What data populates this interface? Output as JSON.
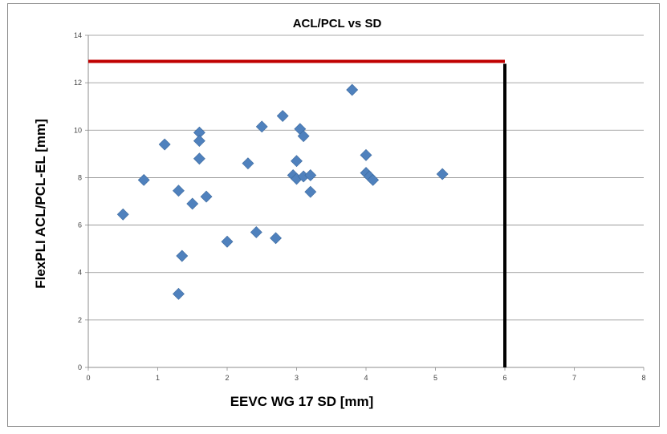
{
  "chart_data": {
    "type": "scatter",
    "title": "ACL/PCL vs SD",
    "xlabel": "EEVC WG 17 SD [mm]",
    "ylabel": "FlexPLI ACL/PCL-EL [mm]",
    "xlim": [
      0,
      8
    ],
    "ylim": [
      0,
      14
    ],
    "x_ticks": [
      "0",
      "1",
      "2",
      "3",
      "4",
      "5",
      "6",
      "7",
      "8"
    ],
    "y_ticks": [
      "0",
      "2",
      "4",
      "6",
      "8",
      "10",
      "12",
      "14"
    ],
    "grid": "horizontal",
    "legend": "none",
    "marker_color": "#4f81bd",
    "points": [
      {
        "x": 0.5,
        "y": 6.45
      },
      {
        "x": 0.8,
        "y": 7.9
      },
      {
        "x": 1.1,
        "y": 9.4
      },
      {
        "x": 1.3,
        "y": 7.45
      },
      {
        "x": 1.3,
        "y": 3.1
      },
      {
        "x": 1.35,
        "y": 4.7
      },
      {
        "x": 1.5,
        "y": 6.9
      },
      {
        "x": 1.6,
        "y": 9.9
      },
      {
        "x": 1.6,
        "y": 9.55
      },
      {
        "x": 1.6,
        "y": 8.8
      },
      {
        "x": 1.7,
        "y": 7.2
      },
      {
        "x": 2.0,
        "y": 5.3
      },
      {
        "x": 2.3,
        "y": 8.6
      },
      {
        "x": 2.42,
        "y": 5.7
      },
      {
        "x": 2.5,
        "y": 10.15
      },
      {
        "x": 2.7,
        "y": 5.45
      },
      {
        "x": 2.8,
        "y": 10.6
      },
      {
        "x": 2.95,
        "y": 8.1
      },
      {
        "x": 3.0,
        "y": 8.7
      },
      {
        "x": 3.0,
        "y": 7.95
      },
      {
        "x": 3.05,
        "y": 10.05
      },
      {
        "x": 3.1,
        "y": 9.75
      },
      {
        "x": 3.1,
        "y": 8.05
      },
      {
        "x": 3.2,
        "y": 8.1
      },
      {
        "x": 3.2,
        "y": 7.4
      },
      {
        "x": 3.8,
        "y": 11.7
      },
      {
        "x": 4.0,
        "y": 8.95
      },
      {
        "x": 4.0,
        "y": 8.2
      },
      {
        "x": 4.05,
        "y": 8.05
      },
      {
        "x": 4.1,
        "y": 7.9
      },
      {
        "x": 5.1,
        "y": 8.15
      }
    ],
    "threshold_lines": [
      {
        "orientation": "horizontal",
        "y": 12.9,
        "x_from": 0,
        "x_to": 6,
        "color": "#c00000"
      },
      {
        "orientation": "vertical",
        "x": 6,
        "y_from": 0,
        "y_to": 12.8,
        "color": "#000000"
      }
    ]
  }
}
